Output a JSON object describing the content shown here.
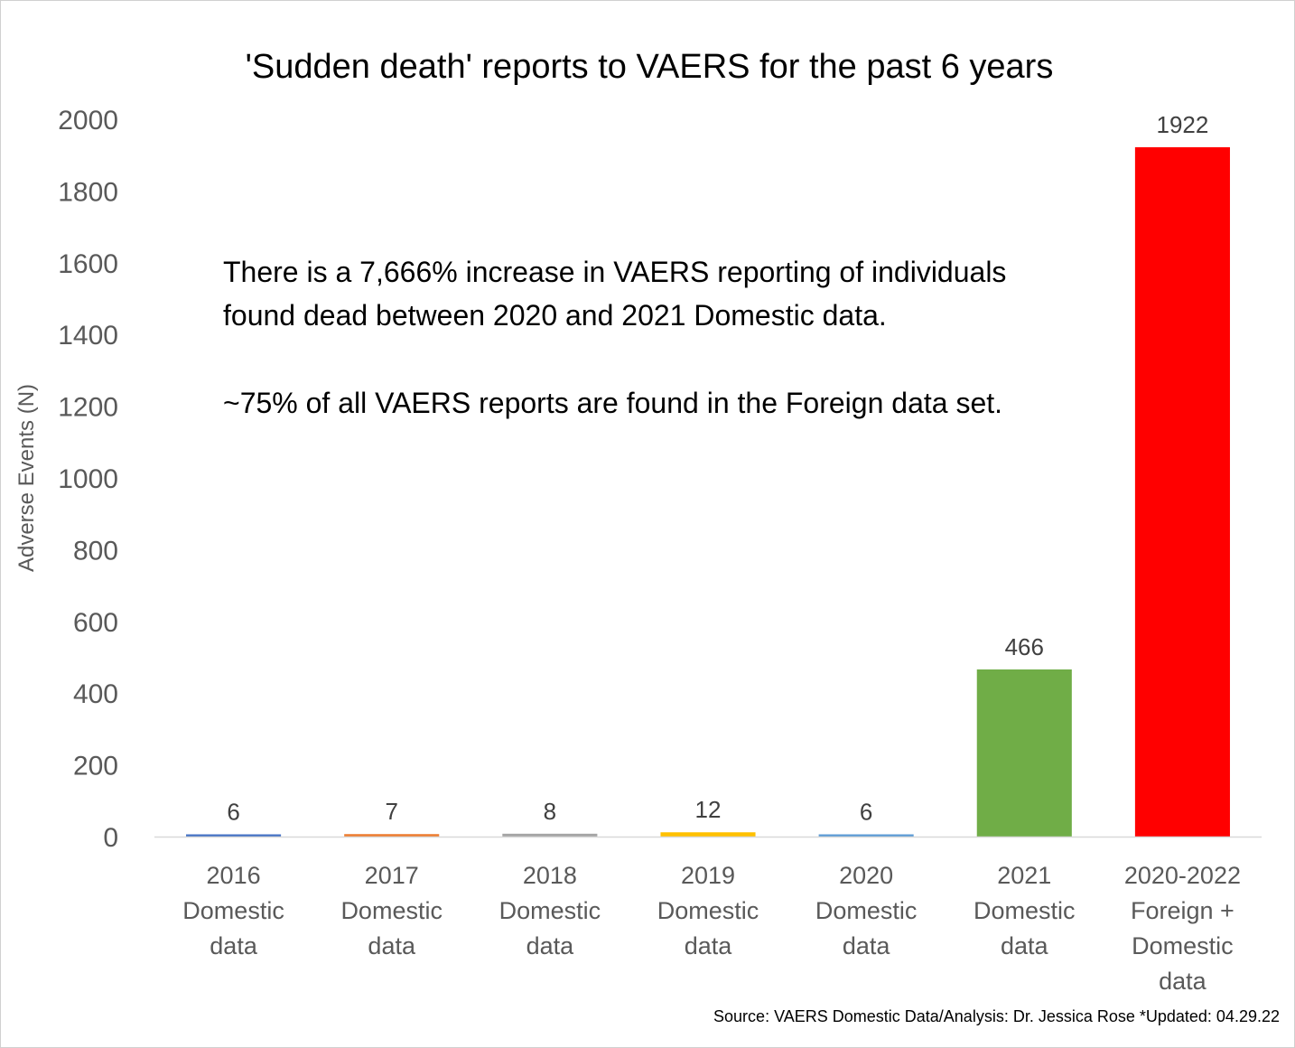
{
  "chart_data": {
    "type": "bar",
    "title": "'Sudden death' reports to VAERS for the past 6 years",
    "ylabel": "Adverse Events (N)",
    "xlabel": "",
    "ylim": [
      0,
      2000
    ],
    "yticks": [
      0,
      200,
      400,
      600,
      800,
      1000,
      1200,
      1400,
      1600,
      1800,
      2000
    ],
    "grid": false,
    "legend": "none",
    "categories": [
      [
        "2016",
        "Domestic",
        "data"
      ],
      [
        "2017",
        "Domestic",
        "data"
      ],
      [
        "2018",
        "Domestic",
        "data"
      ],
      [
        "2019",
        "Domestic",
        "data"
      ],
      [
        "2020",
        "Domestic",
        "data"
      ],
      [
        "2021",
        "Domestic",
        "data"
      ],
      [
        "2020-2022",
        "Foreign +",
        "Domestic",
        "data"
      ]
    ],
    "values": [
      6,
      7,
      8,
      12,
      6,
      466,
      1922
    ],
    "colors": [
      "#4472C4",
      "#ED7D31",
      "#A5A5A5",
      "#FFC000",
      "#5B9BD5",
      "#70AD47",
      "#FF0000"
    ],
    "annotations": [
      "There is a 7,666% increase in VAERS reporting of individuals",
      "found dead between 2020 and 2021 Domestic data.",
      "~75% of all VAERS reports are found in the Foreign data set."
    ],
    "source": "Source: VAERS Domestic Data/Analysis: Dr. Jessica Rose *Updated: 04.29.22"
  }
}
